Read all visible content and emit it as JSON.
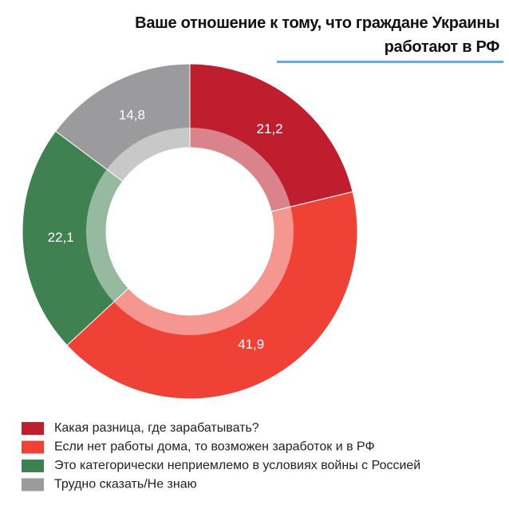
{
  "chart_data": {
    "type": "pie",
    "title": "Ваше отношение к тому, что граждане Украины\nработают в РФ",
    "categories": [
      "Какая разница, где зарабатывать?",
      "Если нет работы дома, то возможен заработок и в РФ",
      "Это категорически неприемлемо в условиях войны с Россией",
      "Трудно сказать/Не знаю"
    ],
    "values": [
      21.2,
      41.9,
      22.1,
      14.8
    ],
    "value_labels": [
      "21,2",
      "41,9",
      "22,1",
      "14,8"
    ],
    "colors": [
      "#be1e2d",
      "#ef4136",
      "#3f8150",
      "#9b9b9d"
    ]
  }
}
